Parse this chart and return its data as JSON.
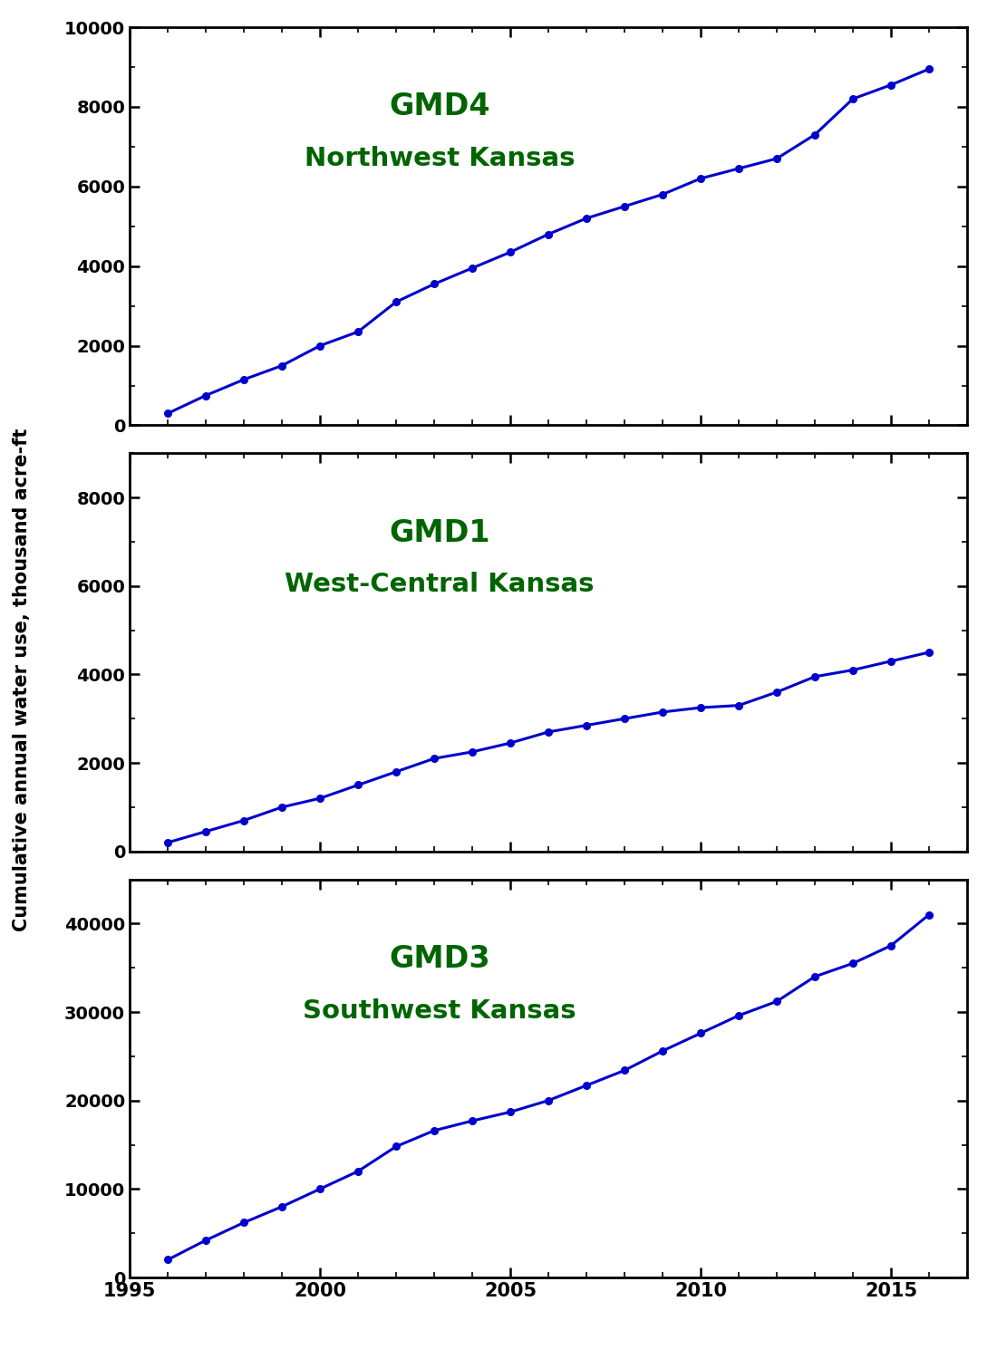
{
  "years": [
    1996,
    1997,
    1998,
    1999,
    2000,
    2001,
    2002,
    2003,
    2004,
    2005,
    2006,
    2007,
    2008,
    2009,
    2010,
    2011,
    2012,
    2013,
    2014,
    2015,
    2016
  ],
  "gmd4_values": [
    300,
    750,
    1150,
    1500,
    2000,
    2350,
    3100,
    3550,
    3950,
    4350,
    4800,
    5200,
    5500,
    5800,
    6200,
    6450,
    6700,
    7300,
    8200,
    8550,
    8950
  ],
  "gmd1_values": [
    200,
    450,
    700,
    1000,
    1200,
    1500,
    1800,
    2100,
    2250,
    2450,
    2700,
    2850,
    3000,
    3150,
    3250,
    3300,
    3600,
    3950,
    4100,
    4300,
    4500
  ],
  "gmd3_values": [
    2000,
    4200,
    6200,
    8000,
    10000,
    12000,
    14800,
    16600,
    17700,
    18700,
    20000,
    21700,
    23400,
    25600,
    27600,
    29600,
    31200,
    34000,
    35500,
    37500,
    41000
  ],
  "gmd4_label1": "GMD4",
  "gmd4_label2": "Northwest Kansas",
  "gmd1_label1": "GMD1",
  "gmd1_label2": "West-Central Kansas",
  "gmd3_label1": "GMD3",
  "gmd3_label2": "Southwest Kansas",
  "ylabel": "Cumulative annual water use, thousand acre-ft",
  "line_color": "#0000CC",
  "label_color": "#006400",
  "gmd4_ylim": [
    0,
    10000
  ],
  "gmd4_yticks": [
    0,
    2000,
    4000,
    6000,
    8000,
    10000
  ],
  "gmd1_ylim": [
    0,
    9000
  ],
  "gmd1_yticks": [
    0,
    2000,
    4000,
    6000,
    8000
  ],
  "gmd3_ylim": [
    0,
    45000
  ],
  "gmd3_yticks": [
    0,
    10000,
    20000,
    30000,
    40000
  ],
  "xlim": [
    1995,
    2017
  ],
  "xticks": [
    1995,
    2000,
    2005,
    2010,
    2015
  ]
}
